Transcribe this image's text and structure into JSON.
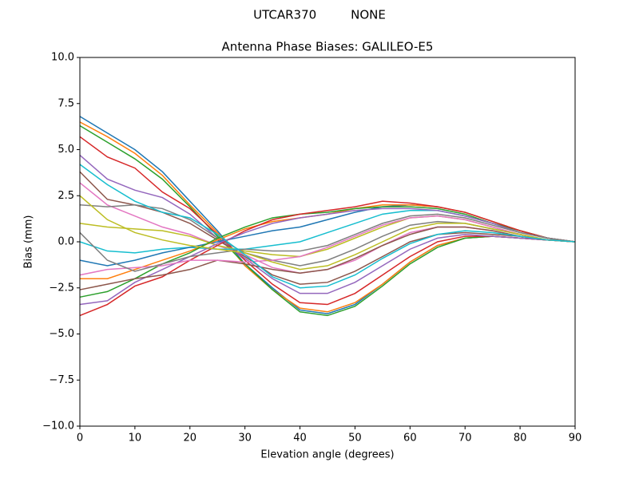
{
  "chart_data": {
    "type": "line",
    "suptitle": "UTCAR370         NONE",
    "title": "Antenna Phase Biases: GALILEO-E5",
    "xlabel": "Elevation angle (degrees)",
    "ylabel": "Bias (mm)",
    "x": [
      0,
      5,
      10,
      15,
      20,
      25,
      30,
      35,
      40,
      45,
      50,
      55,
      60,
      65,
      70,
      75,
      80,
      85,
      90
    ],
    "xlim": [
      0,
      90
    ],
    "xticks": [
      0,
      10,
      20,
      30,
      40,
      50,
      60,
      70,
      80,
      90
    ],
    "ylim": [
      -10,
      10
    ],
    "yticks": [
      {
        "value": -10,
        "label": "−10.0"
      },
      {
        "value": -7.5,
        "label": "−7.5"
      },
      {
        "value": -5,
        "label": "−5.0"
      },
      {
        "value": -2.5,
        "label": "−2.5"
      },
      {
        "value": 0,
        "label": "0.0"
      },
      {
        "value": 2.5,
        "label": "2.5"
      },
      {
        "value": 5,
        "label": "5.0"
      },
      {
        "value": 7.5,
        "label": "7.5"
      },
      {
        "value": 10,
        "label": "10.0"
      }
    ],
    "grid": false,
    "series": [
      {
        "color": "#1f77b4",
        "values": [
          6.8,
          5.9,
          5.0,
          3.8,
          2.2,
          0.6,
          -1.2,
          -2.5,
          -3.7,
          -3.9,
          -3.4,
          -2.3,
          -1.1,
          -0.2,
          0.2,
          0.3,
          0.2,
          0.1,
          0
        ]
      },
      {
        "color": "#ff7f0e",
        "values": [
          6.5,
          5.7,
          4.8,
          3.6,
          2.0,
          0.5,
          -1.3,
          -2.6,
          -3.6,
          -3.8,
          -3.3,
          -2.3,
          -1.1,
          -0.2,
          0.2,
          0.3,
          0.2,
          0.1,
          0
        ]
      },
      {
        "color": "#2ca02c",
        "values": [
          6.3,
          5.4,
          4.5,
          3.4,
          1.9,
          0.3,
          -1.2,
          -2.6,
          -3.8,
          -4.0,
          -3.5,
          -2.4,
          -1.2,
          -0.3,
          0.2,
          0.3,
          0.2,
          0.1,
          0
        ]
      },
      {
        "color": "#d62728",
        "values": [
          5.7,
          4.6,
          4.0,
          2.7,
          1.8,
          0.4,
          -1.0,
          -2.3,
          -3.3,
          -3.4,
          -2.8,
          -1.8,
          -0.8,
          0.0,
          0.3,
          0.3,
          0.2,
          0.1,
          0
        ]
      },
      {
        "color": "#9467bd",
        "values": [
          4.7,
          3.4,
          2.8,
          2.4,
          1.5,
          0.2,
          -0.9,
          -2.0,
          -2.8,
          -2.8,
          -2.2,
          -1.3,
          -0.4,
          0.2,
          0.4,
          0.3,
          0.2,
          0.1,
          0
        ]
      },
      {
        "color": "#8c564b",
        "values": [
          3.8,
          2.3,
          2.0,
          1.6,
          1.0,
          0.1,
          -0.8,
          -1.8,
          -2.3,
          -2.2,
          -1.6,
          -0.8,
          0.0,
          0.4,
          0.5,
          0.4,
          0.3,
          0.1,
          0
        ]
      },
      {
        "color": "#e377c2",
        "values": [
          3.2,
          2.0,
          1.4,
          0.8,
          0.4,
          -0.2,
          -0.7,
          -1.4,
          -1.7,
          -1.5,
          -1.0,
          -0.2,
          0.5,
          0.8,
          0.8,
          0.6,
          0.3,
          0.1,
          0
        ]
      },
      {
        "color": "#7f7f7f",
        "values": [
          2.0,
          1.9,
          2.0,
          1.8,
          1.2,
          0.2,
          -0.6,
          -1.0,
          -1.3,
          -1.0,
          -0.4,
          0.3,
          0.9,
          1.1,
          1.0,
          0.7,
          0.4,
          0.1,
          0
        ]
      },
      {
        "color": "#bcbd22",
        "values": [
          1.0,
          0.8,
          0.7,
          0.6,
          0.3,
          -0.2,
          -0.5,
          -0.7,
          -0.8,
          -0.4,
          0.2,
          0.8,
          1.3,
          1.4,
          1.2,
          0.8,
          0.4,
          0.1,
          0
        ]
      },
      {
        "color": "#17becf",
        "values": [
          0.0,
          -0.5,
          -0.6,
          -0.4,
          -0.3,
          -0.4,
          -0.4,
          -0.2,
          0.0,
          0.5,
          1.0,
          1.5,
          1.7,
          1.7,
          1.4,
          1.0,
          0.5,
          0.2,
          0
        ]
      },
      {
        "color": "#1f77b4",
        "values": [
          -1.0,
          -1.3,
          -1.0,
          -0.6,
          -0.3,
          0.0,
          0.3,
          0.6,
          0.8,
          1.2,
          1.6,
          1.9,
          2.0,
          1.9,
          1.6,
          1.1,
          0.6,
          0.2,
          0
        ]
      },
      {
        "color": "#ff7f0e",
        "values": [
          -2.0,
          -2.0,
          -1.5,
          -1.0,
          -0.5,
          0.1,
          0.7,
          1.1,
          1.3,
          1.5,
          1.8,
          2.0,
          2.0,
          1.9,
          1.6,
          1.1,
          0.6,
          0.2,
          0
        ]
      },
      {
        "color": "#2ca02c",
        "values": [
          -3.0,
          -2.7,
          -2.0,
          -1.2,
          -0.6,
          0.2,
          0.8,
          1.3,
          1.5,
          1.6,
          1.8,
          1.9,
          1.9,
          1.8,
          1.5,
          1.0,
          0.6,
          0.2,
          0
        ]
      },
      {
        "color": "#d62728",
        "values": [
          -4.0,
          -3.4,
          -2.4,
          -1.9,
          -1.0,
          -0.2,
          0.6,
          1.2,
          1.5,
          1.7,
          1.9,
          2.2,
          2.1,
          1.9,
          1.6,
          1.1,
          0.6,
          0.2,
          0
        ]
      },
      {
        "color": "#9467bd",
        "values": [
          -3.4,
          -3.2,
          -2.2,
          -1.5,
          -0.8,
          -0.1,
          0.5,
          1.0,
          1.3,
          1.5,
          1.7,
          1.8,
          1.8,
          1.7,
          1.4,
          1.0,
          0.5,
          0.2,
          0
        ]
      },
      {
        "color": "#8c564b",
        "values": [
          -2.6,
          -2.3,
          -2.0,
          -1.8,
          -1.5,
          -1.0,
          -1.2,
          -1.5,
          -1.7,
          -1.5,
          -0.9,
          -0.2,
          0.4,
          0.8,
          0.8,
          0.6,
          0.3,
          0.1,
          0
        ]
      },
      {
        "color": "#e377c2",
        "values": [
          -1.8,
          -1.5,
          -1.4,
          -1.3,
          -1.0,
          -1.0,
          -1.1,
          -1.0,
          -0.8,
          -0.3,
          0.3,
          0.9,
          1.3,
          1.4,
          1.2,
          0.8,
          0.4,
          0.1,
          0
        ]
      },
      {
        "color": "#7f7f7f",
        "values": [
          0.5,
          -1.0,
          -1.6,
          -1.2,
          -0.8,
          -0.6,
          -0.4,
          -0.5,
          -0.5,
          -0.2,
          0.4,
          1.0,
          1.4,
          1.5,
          1.3,
          0.9,
          0.5,
          0.2,
          0
        ]
      },
      {
        "color": "#bcbd22",
        "values": [
          2.5,
          1.2,
          0.5,
          0.1,
          -0.2,
          -0.4,
          -0.6,
          -1.1,
          -1.5,
          -1.3,
          -0.7,
          0.0,
          0.7,
          1.0,
          1.0,
          0.7,
          0.4,
          0.1,
          0
        ]
      },
      {
        "color": "#17becf",
        "values": [
          4.2,
          3.1,
          2.2,
          1.6,
          1.3,
          0.4,
          -0.7,
          -1.9,
          -2.5,
          -2.4,
          -1.8,
          -0.9,
          -0.1,
          0.4,
          0.6,
          0.5,
          0.3,
          0.1,
          0
        ]
      }
    ]
  }
}
